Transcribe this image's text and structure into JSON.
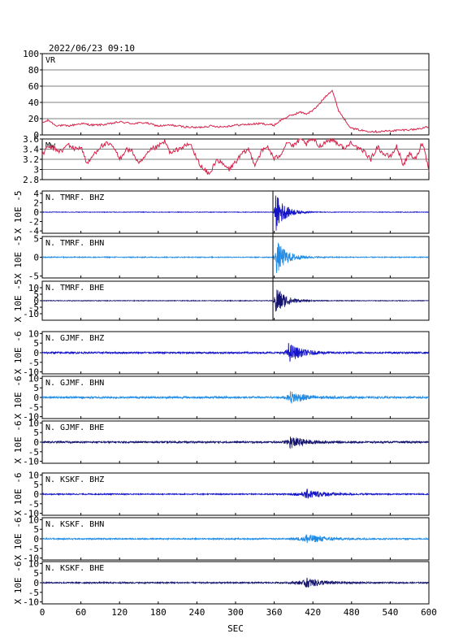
{
  "header": {
    "datetime": "2022/06/23 09:10"
  },
  "chart_data": {
    "type": "line",
    "xlabel": "SEC",
    "xlim": [
      0,
      600
    ],
    "x_ticks": [
      0,
      60,
      120,
      180,
      240,
      300,
      360,
      420,
      480,
      540,
      600
    ],
    "panels": [
      {
        "id": "vr",
        "label": "VR",
        "ylabel": "",
        "ylim": [
          0,
          100
        ],
        "y_ticks": [
          0,
          20,
          40,
          60,
          80,
          100
        ],
        "grid": true,
        "color": "#d6224a",
        "x": [
          0,
          10,
          20,
          40,
          60,
          80,
          100,
          120,
          140,
          160,
          180,
          200,
          220,
          240,
          260,
          280,
          300,
          320,
          340,
          360,
          370,
          380,
          390,
          400,
          410,
          420,
          430,
          440,
          450,
          455,
          460,
          470,
          480,
          500,
          520,
          540,
          560,
          580,
          600
        ],
        "values": [
          15,
          18,
          12,
          11,
          14,
          12,
          13,
          16,
          14,
          15,
          11,
          12,
          10,
          9,
          11,
          10,
          12,
          13,
          14,
          12,
          18,
          22,
          25,
          28,
          26,
          30,
          38,
          48,
          55,
          42,
          30,
          18,
          8,
          5,
          4,
          5,
          6,
          7,
          10
        ]
      },
      {
        "id": "mw",
        "label": "Mw",
        "ylabel": "",
        "ylim": [
          2.8,
          3.6
        ],
        "y_ticks": [
          2.8,
          3.0,
          3.2,
          3.4,
          3.6
        ],
        "grid": true,
        "color": "#d6224a",
        "x": [
          0,
          10,
          20,
          30,
          40,
          50,
          60,
          70,
          80,
          90,
          100,
          110,
          120,
          130,
          140,
          150,
          160,
          170,
          180,
          190,
          200,
          210,
          220,
          230,
          240,
          250,
          260,
          270,
          280,
          290,
          300,
          310,
          320,
          330,
          340,
          350,
          360,
          370,
          380,
          390,
          400,
          410,
          420,
          430,
          440,
          450,
          460,
          470,
          480,
          490,
          500,
          510,
          520,
          530,
          540,
          550,
          560,
          570,
          580,
          590,
          600
        ],
        "values": [
          3.3,
          3.45,
          3.4,
          3.35,
          3.5,
          3.4,
          3.45,
          3.1,
          3.3,
          3.45,
          3.5,
          3.45,
          3.2,
          3.4,
          3.35,
          3.1,
          3.25,
          3.4,
          3.45,
          3.55,
          3.3,
          3.4,
          3.45,
          3.5,
          3.2,
          3.0,
          2.9,
          3.2,
          3.1,
          3.0,
          3.15,
          3.3,
          3.4,
          3.1,
          3.35,
          3.45,
          3.2,
          3.3,
          3.55,
          3.45,
          3.6,
          3.5,
          3.6,
          3.45,
          3.55,
          3.6,
          3.5,
          3.4,
          3.55,
          3.4,
          3.35,
          3.2,
          3.45,
          3.3,
          3.25,
          3.45,
          3.1,
          3.3,
          3.2,
          3.55,
          3.0
        ]
      },
      {
        "id": "tmrf-bhz",
        "label": "N. TMRF. BHZ",
        "ylabel": "X 10E -5",
        "ylim": [
          -4.5,
          4.5
        ],
        "y_ticks": [
          -4,
          -2,
          0,
          2,
          4
        ],
        "grid": false,
        "color": "#1414c8",
        "onset": 358,
        "peak_t": 362,
        "amp": 4.2,
        "noise": 0.06,
        "decay": 14
      },
      {
        "id": "tmrf-bhn",
        "label": "N. TMRF. BHN",
        "ylabel": "X 10E -5",
        "ylim": [
          -5.5,
          5.5
        ],
        "y_ticks": [
          -5,
          0,
          5
        ],
        "grid": false,
        "color": "#1e8ce6",
        "onset": 358,
        "peak_t": 363,
        "amp": 4.6,
        "noise": 0.12,
        "decay": 16
      },
      {
        "id": "tmrf-bhe",
        "label": "N. TMRF. BHE",
        "ylabel": "X 10E -5",
        "ylim": [
          -15,
          15
        ],
        "y_ticks": [
          -10,
          -5,
          0,
          5,
          10
        ],
        "grid": false,
        "color": "#14146e",
        "onset": 358,
        "peak_t": 362,
        "amp": 13,
        "noise": 0.25,
        "decay": 14
      },
      {
        "id": "gjmf-bhz",
        "label": "N. GJMF. BHZ",
        "ylabel": "X 10E -6",
        "ylim": [
          -11,
          11
        ],
        "y_ticks": [
          -10,
          -5,
          0,
          5,
          10
        ],
        "grid": false,
        "color": "#1414c8",
        "onset": 372,
        "peak_t": 382,
        "amp": 5,
        "noise": 0.45,
        "decay": 20
      },
      {
        "id": "gjmf-bhn",
        "label": "N. GJMF. BHN",
        "ylabel": "X 10E -6",
        "ylim": [
          -11,
          11
        ],
        "y_ticks": [
          -10,
          -5,
          0,
          5,
          10
        ],
        "grid": false,
        "color": "#1e8ce6",
        "onset": 372,
        "peak_t": 385,
        "amp": 3.2,
        "noise": 0.5,
        "decay": 22
      },
      {
        "id": "gjmf-bhe",
        "label": "N. GJMF. BHE",
        "ylabel": "X 10E -6",
        "ylim": [
          -11,
          11
        ],
        "y_ticks": [
          -10,
          -5,
          0,
          5,
          10
        ],
        "grid": false,
        "color": "#14146e",
        "onset": 372,
        "peak_t": 384,
        "amp": 3.2,
        "noise": 0.45,
        "decay": 22
      },
      {
        "id": "kskf-bhz",
        "label": "N. KSKF. BHZ",
        "ylabel": "X 10E -6",
        "ylim": [
          -11,
          11
        ],
        "y_ticks": [
          -10,
          -5,
          0,
          5,
          10
        ],
        "grid": false,
        "color": "#1414c8",
        "onset": 378,
        "peak_t": 408,
        "amp": 2.6,
        "noise": 0.3,
        "decay": 30
      },
      {
        "id": "kskf-bhn",
        "label": "N. KSKF. BHN",
        "ylabel": "X 10E -6",
        "ylim": [
          -11,
          11
        ],
        "y_ticks": [
          -10,
          -5,
          0,
          5,
          10
        ],
        "grid": false,
        "color": "#1e8ce6",
        "onset": 378,
        "peak_t": 408,
        "amp": 2.6,
        "noise": 0.35,
        "decay": 28
      },
      {
        "id": "kskf-bhe",
        "label": "N. KSKF. BHE",
        "ylabel": "X 10E -6",
        "ylim": [
          -11,
          11
        ],
        "y_ticks": [
          -10,
          -5,
          0,
          5,
          10
        ],
        "grid": false,
        "color": "#14146e",
        "onset": 378,
        "peak_t": 408,
        "amp": 2.6,
        "noise": 0.35,
        "decay": 28
      }
    ]
  }
}
